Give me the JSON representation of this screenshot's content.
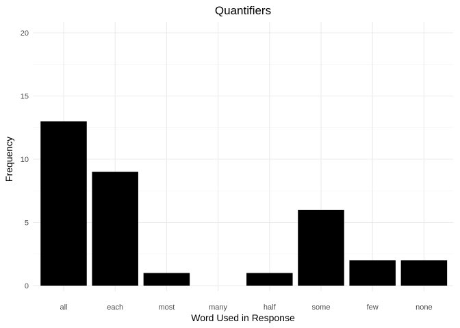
{
  "chart_data": {
    "type": "bar",
    "title": "Quantifiers",
    "xlabel": "Word Used in Response",
    "ylabel": "Frequency",
    "categories": [
      "all",
      "each",
      "most",
      "many",
      "half",
      "some",
      "few",
      "none"
    ],
    "values": [
      13,
      9,
      1,
      0,
      1,
      6,
      2,
      2
    ],
    "ylim": [
      0,
      20
    ],
    "yticks": [
      0,
      5,
      10,
      15,
      20
    ],
    "grid": true,
    "legend": "none",
    "bar_color": "#000000"
  }
}
